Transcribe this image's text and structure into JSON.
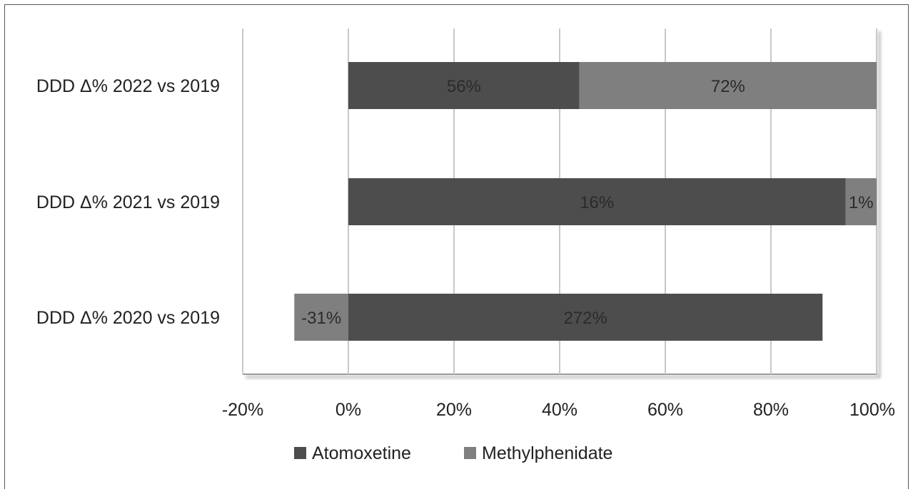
{
  "chart_data": {
    "type": "bar",
    "orientation": "horizontal",
    "stacked": "100%",
    "categories": [
      "DDD Δ% 2022 vs 2019",
      "DDD Δ% 2021 vs 2019",
      "DDD Δ% 2020 vs 2019"
    ],
    "series": [
      {
        "name": "Atomoxetine",
        "color": "#4d4d4d",
        "values": [
          56,
          16,
          272
        ],
        "labels": [
          "56%",
          "16%",
          "272%"
        ]
      },
      {
        "name": "Methylphenidate",
        "color": "#7f7f7f",
        "values": [
          72,
          1,
          -31
        ],
        "labels": [
          "72%",
          "1%",
          "-31%"
        ]
      }
    ],
    "xlim": [
      -20,
      100
    ],
    "x_ticks": [
      "-20%",
      "0%",
      "20%",
      "40%",
      "60%",
      "80%",
      "100%"
    ],
    "grid": true,
    "legend": "bottom",
    "title": "",
    "xlabel": "",
    "ylabel": ""
  }
}
